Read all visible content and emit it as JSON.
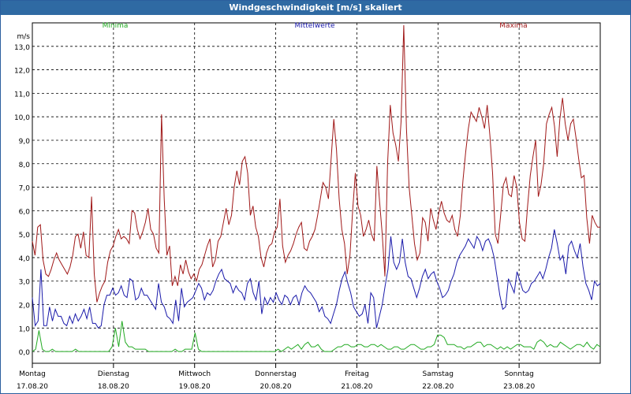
{
  "chart_data": {
    "type": "line",
    "title": "Windgeschwindigkeit [m/s] skaliert",
    "ylabel": "m/s",
    "ylim": [
      -0.5,
      14.0
    ],
    "yticks": [
      "0,0",
      "1,0",
      "2,0",
      "3,0",
      "4,0",
      "5,0",
      "6,0",
      "7,0",
      "8,0",
      "9,0",
      "10,0",
      "11,0",
      "12,0",
      "13,0"
    ],
    "ytick_values": [
      0,
      1,
      2,
      3,
      4,
      5,
      6,
      7,
      8,
      9,
      10,
      11,
      12,
      13
    ],
    "days": [
      {
        "name": "Montag",
        "date": "17.08.20"
      },
      {
        "name": "Dienstag",
        "date": "18.08.20"
      },
      {
        "name": "Mittwoch",
        "date": "19.08.20"
      },
      {
        "name": "Donnerstag",
        "date": "20.08.20"
      },
      {
        "name": "Freitag",
        "date": "21.08.20"
      },
      {
        "name": "Samstag",
        "date": "22.08.20"
      },
      {
        "name": "Sonntag",
        "date": "23.08.20"
      }
    ],
    "grid": true,
    "series": [
      {
        "name": "Minima",
        "color": "#22aa22",
        "values": [
          0.0,
          0.1,
          0.9,
          0.1,
          0.0,
          0.0,
          0.1,
          0.0,
          0.0,
          0.0,
          0.0,
          0.0,
          0.0,
          0.1,
          0.0,
          0.0,
          0.0,
          0.0,
          0.0,
          0.0,
          0.0,
          0.0,
          0.0,
          0.0,
          0.2,
          1.0,
          0.2,
          1.3,
          0.4,
          0.2,
          0.2,
          0.1,
          0.1,
          0.1,
          0.1,
          0.0,
          0.0,
          0.0,
          0.0,
          0.0,
          0.0,
          0.0,
          0.0,
          0.1,
          0.0,
          0.0,
          0.1,
          0.1,
          0.1,
          0.8,
          0.1,
          0.0,
          0.0,
          0.0,
          0.0,
          0.0,
          0.0,
          0.0,
          0.0,
          0.0,
          0.0,
          0.0,
          0.0,
          0.0,
          0.0,
          0.0,
          0.0,
          0.0,
          0.0,
          0.0,
          0.0,
          0.0,
          0.0,
          0.0,
          0.1,
          0.0,
          0.1,
          0.2,
          0.1,
          0.2,
          0.3,
          0.1,
          0.3,
          0.4,
          0.2,
          0.2,
          0.3,
          0.1,
          0.0,
          0.0,
          0.0,
          0.1,
          0.2,
          0.2,
          0.3,
          0.3,
          0.2,
          0.2,
          0.3,
          0.3,
          0.2,
          0.2,
          0.3,
          0.3,
          0.2,
          0.3,
          0.2,
          0.1,
          0.1,
          0.2,
          0.2,
          0.1,
          0.1,
          0.2,
          0.3,
          0.3,
          0.2,
          0.1,
          0.1,
          0.2,
          0.2,
          0.3,
          0.7,
          0.7,
          0.6,
          0.3,
          0.3,
          0.3,
          0.2,
          0.2,
          0.1,
          0.2,
          0.2,
          0.3,
          0.4,
          0.4,
          0.2,
          0.3,
          0.3,
          0.2,
          0.1,
          0.2,
          0.1,
          0.2,
          0.1,
          0.2,
          0.3,
          0.3,
          0.2,
          0.2,
          0.2,
          0.1,
          0.4,
          0.5,
          0.4,
          0.2,
          0.3,
          0.2,
          0.2,
          0.4,
          0.3,
          0.2,
          0.1,
          0.2,
          0.3,
          0.3,
          0.2,
          0.4,
          0.2,
          0.1,
          0.3,
          0.2
        ]
      },
      {
        "name": "Mittelwerte",
        "color": "#1a1aaa",
        "values": [
          2.3,
          1.1,
          1.3,
          3.5,
          1.1,
          1.1,
          1.9,
          1.3,
          1.8,
          1.5,
          1.5,
          1.2,
          1.1,
          1.5,
          1.2,
          1.6,
          1.3,
          1.5,
          1.8,
          1.4,
          1.9,
          1.2,
          1.2,
          1.0,
          1.1,
          2.0,
          2.4,
          2.4,
          2.7,
          2.4,
          2.5,
          2.8,
          2.4,
          2.3,
          3.1,
          3.0,
          2.2,
          2.3,
          2.7,
          2.4,
          2.4,
          2.2,
          2.0,
          1.8,
          2.9,
          2.1,
          1.9,
          1.5,
          1.4,
          1.2,
          2.2,
          1.3,
          2.7,
          1.9,
          2.1,
          2.2,
          2.3,
          2.6,
          2.9,
          2.7,
          2.2,
          2.5,
          2.4,
          2.6,
          3.0,
          3.3,
          3.5,
          3.1,
          3.0,
          2.9,
          2.5,
          2.8,
          2.6,
          2.5,
          2.2,
          2.9,
          3.1,
          2.5,
          2.2,
          3.0,
          1.6,
          2.3,
          2.0,
          2.3,
          2.1,
          2.5,
          2.2,
          2.0,
          2.4,
          2.3,
          2.0,
          2.3,
          2.4,
          2.0,
          2.5,
          2.8,
          2.6,
          2.5,
          2.3,
          2.1,
          1.7,
          1.9,
          1.5,
          1.4,
          1.2,
          1.6,
          2.0,
          2.6,
          3.1,
          3.4,
          2.9,
          2.5,
          1.9,
          1.7,
          1.5,
          1.6,
          2.0,
          1.2,
          2.5,
          2.3,
          1.0,
          1.5,
          2.0,
          2.8,
          3.5,
          4.9,
          3.8,
          3.5,
          3.8,
          4.8,
          3.8,
          3.2,
          3.1,
          2.7,
          2.3,
          2.7,
          3.2,
          3.5,
          3.1,
          3.3,
          3.4,
          3.0,
          2.7,
          2.3,
          2.4,
          2.6,
          3.0,
          3.3,
          3.8,
          4.1,
          4.3,
          4.5,
          4.8,
          4.6,
          4.4,
          4.9,
          4.7,
          4.3,
          4.7,
          4.8,
          4.5,
          4.0,
          3.2,
          2.4,
          1.8,
          1.9,
          3.1,
          2.8,
          2.5,
          3.4,
          3.0,
          2.6,
          2.5,
          2.6,
          2.9,
          3.0,
          3.2,
          3.4,
          3.1,
          3.5,
          4.0,
          4.4,
          5.2,
          4.6,
          3.9,
          4.1,
          3.3,
          4.5,
          4.7,
          4.3,
          4.0,
          4.6,
          3.6,
          2.9,
          2.6,
          2.2,
          3.0,
          2.8,
          2.9
        ]
      },
      {
        "name": "Maxima",
        "color": "#a01818",
        "values": [
          4.7,
          4.1,
          5.3,
          5.4,
          3.9,
          3.3,
          3.2,
          3.5,
          3.9,
          4.2,
          3.9,
          3.7,
          3.5,
          3.3,
          3.6,
          4.1,
          4.9,
          5.0,
          4.4,
          5.1,
          4.1,
          4.0,
          6.6,
          3.3,
          2.1,
          2.5,
          2.8,
          3.0,
          3.8,
          4.3,
          4.5,
          4.9,
          5.2,
          4.8,
          4.9,
          4.8,
          4.6,
          6.0,
          5.9,
          5.2,
          4.8,
          5.1,
          5.5,
          6.1,
          5.2,
          5.0,
          4.4,
          4.2,
          10.1,
          6.5,
          4.1,
          4.5,
          2.8,
          3.2,
          2.8,
          3.7,
          3.3,
          3.9,
          3.4,
          3.1,
          3.3,
          3.0,
          3.5,
          3.7,
          4.1,
          4.5,
          4.8,
          3.6,
          3.9,
          4.7,
          4.9,
          5.5,
          6.1,
          5.4,
          5.8,
          7.0,
          7.7,
          7.1,
          8.1,
          8.3,
          7.6,
          5.8,
          6.2,
          5.3,
          4.9,
          4.0,
          3.6,
          4.2,
          4.5,
          4.6,
          5.1,
          5.3,
          6.5,
          4.5,
          3.8,
          4.1,
          4.3,
          4.6,
          5.0,
          5.3,
          5.5,
          4.4,
          4.3,
          4.7,
          4.9,
          5.2,
          5.8,
          6.5,
          7.2,
          7.0,
          6.5,
          8.2,
          9.9,
          8.6,
          6.5,
          5.2,
          4.6,
          3.3,
          4.1,
          6.0,
          7.6,
          6.2,
          5.8,
          4.9,
          5.2,
          5.6,
          5.0,
          4.7,
          7.9,
          6.4,
          5.0,
          3.2,
          8.0,
          10.5,
          9.3,
          8.8,
          8.1,
          9.8,
          13.9,
          9.5,
          7.0,
          5.8,
          4.6,
          3.9,
          4.2,
          5.7,
          5.5,
          4.7,
          6.1,
          5.6,
          5.2,
          5.9,
          6.4,
          5.9,
          5.6,
          5.5,
          5.8,
          5.2,
          4.9,
          5.8,
          7.3,
          8.5,
          9.5,
          10.2,
          10.0,
          9.8,
          10.4,
          10.0,
          9.5,
          10.5,
          9.2,
          7.6,
          5.0,
          4.6,
          5.8,
          7.1,
          7.4,
          6.7,
          6.6,
          7.5,
          7.0,
          5.5,
          4.8,
          4.7,
          6.2,
          7.5,
          8.3,
          9.0,
          6.6,
          7.1,
          8.0,
          9.7,
          10.1,
          10.4,
          9.6,
          8.3,
          9.9,
          10.8,
          9.7,
          9.0,
          9.7,
          9.9,
          9.1,
          8.2,
          7.4,
          7.5,
          5.7,
          4.6,
          5.8,
          5.5,
          5.3,
          5.3
        ]
      }
    ]
  }
}
